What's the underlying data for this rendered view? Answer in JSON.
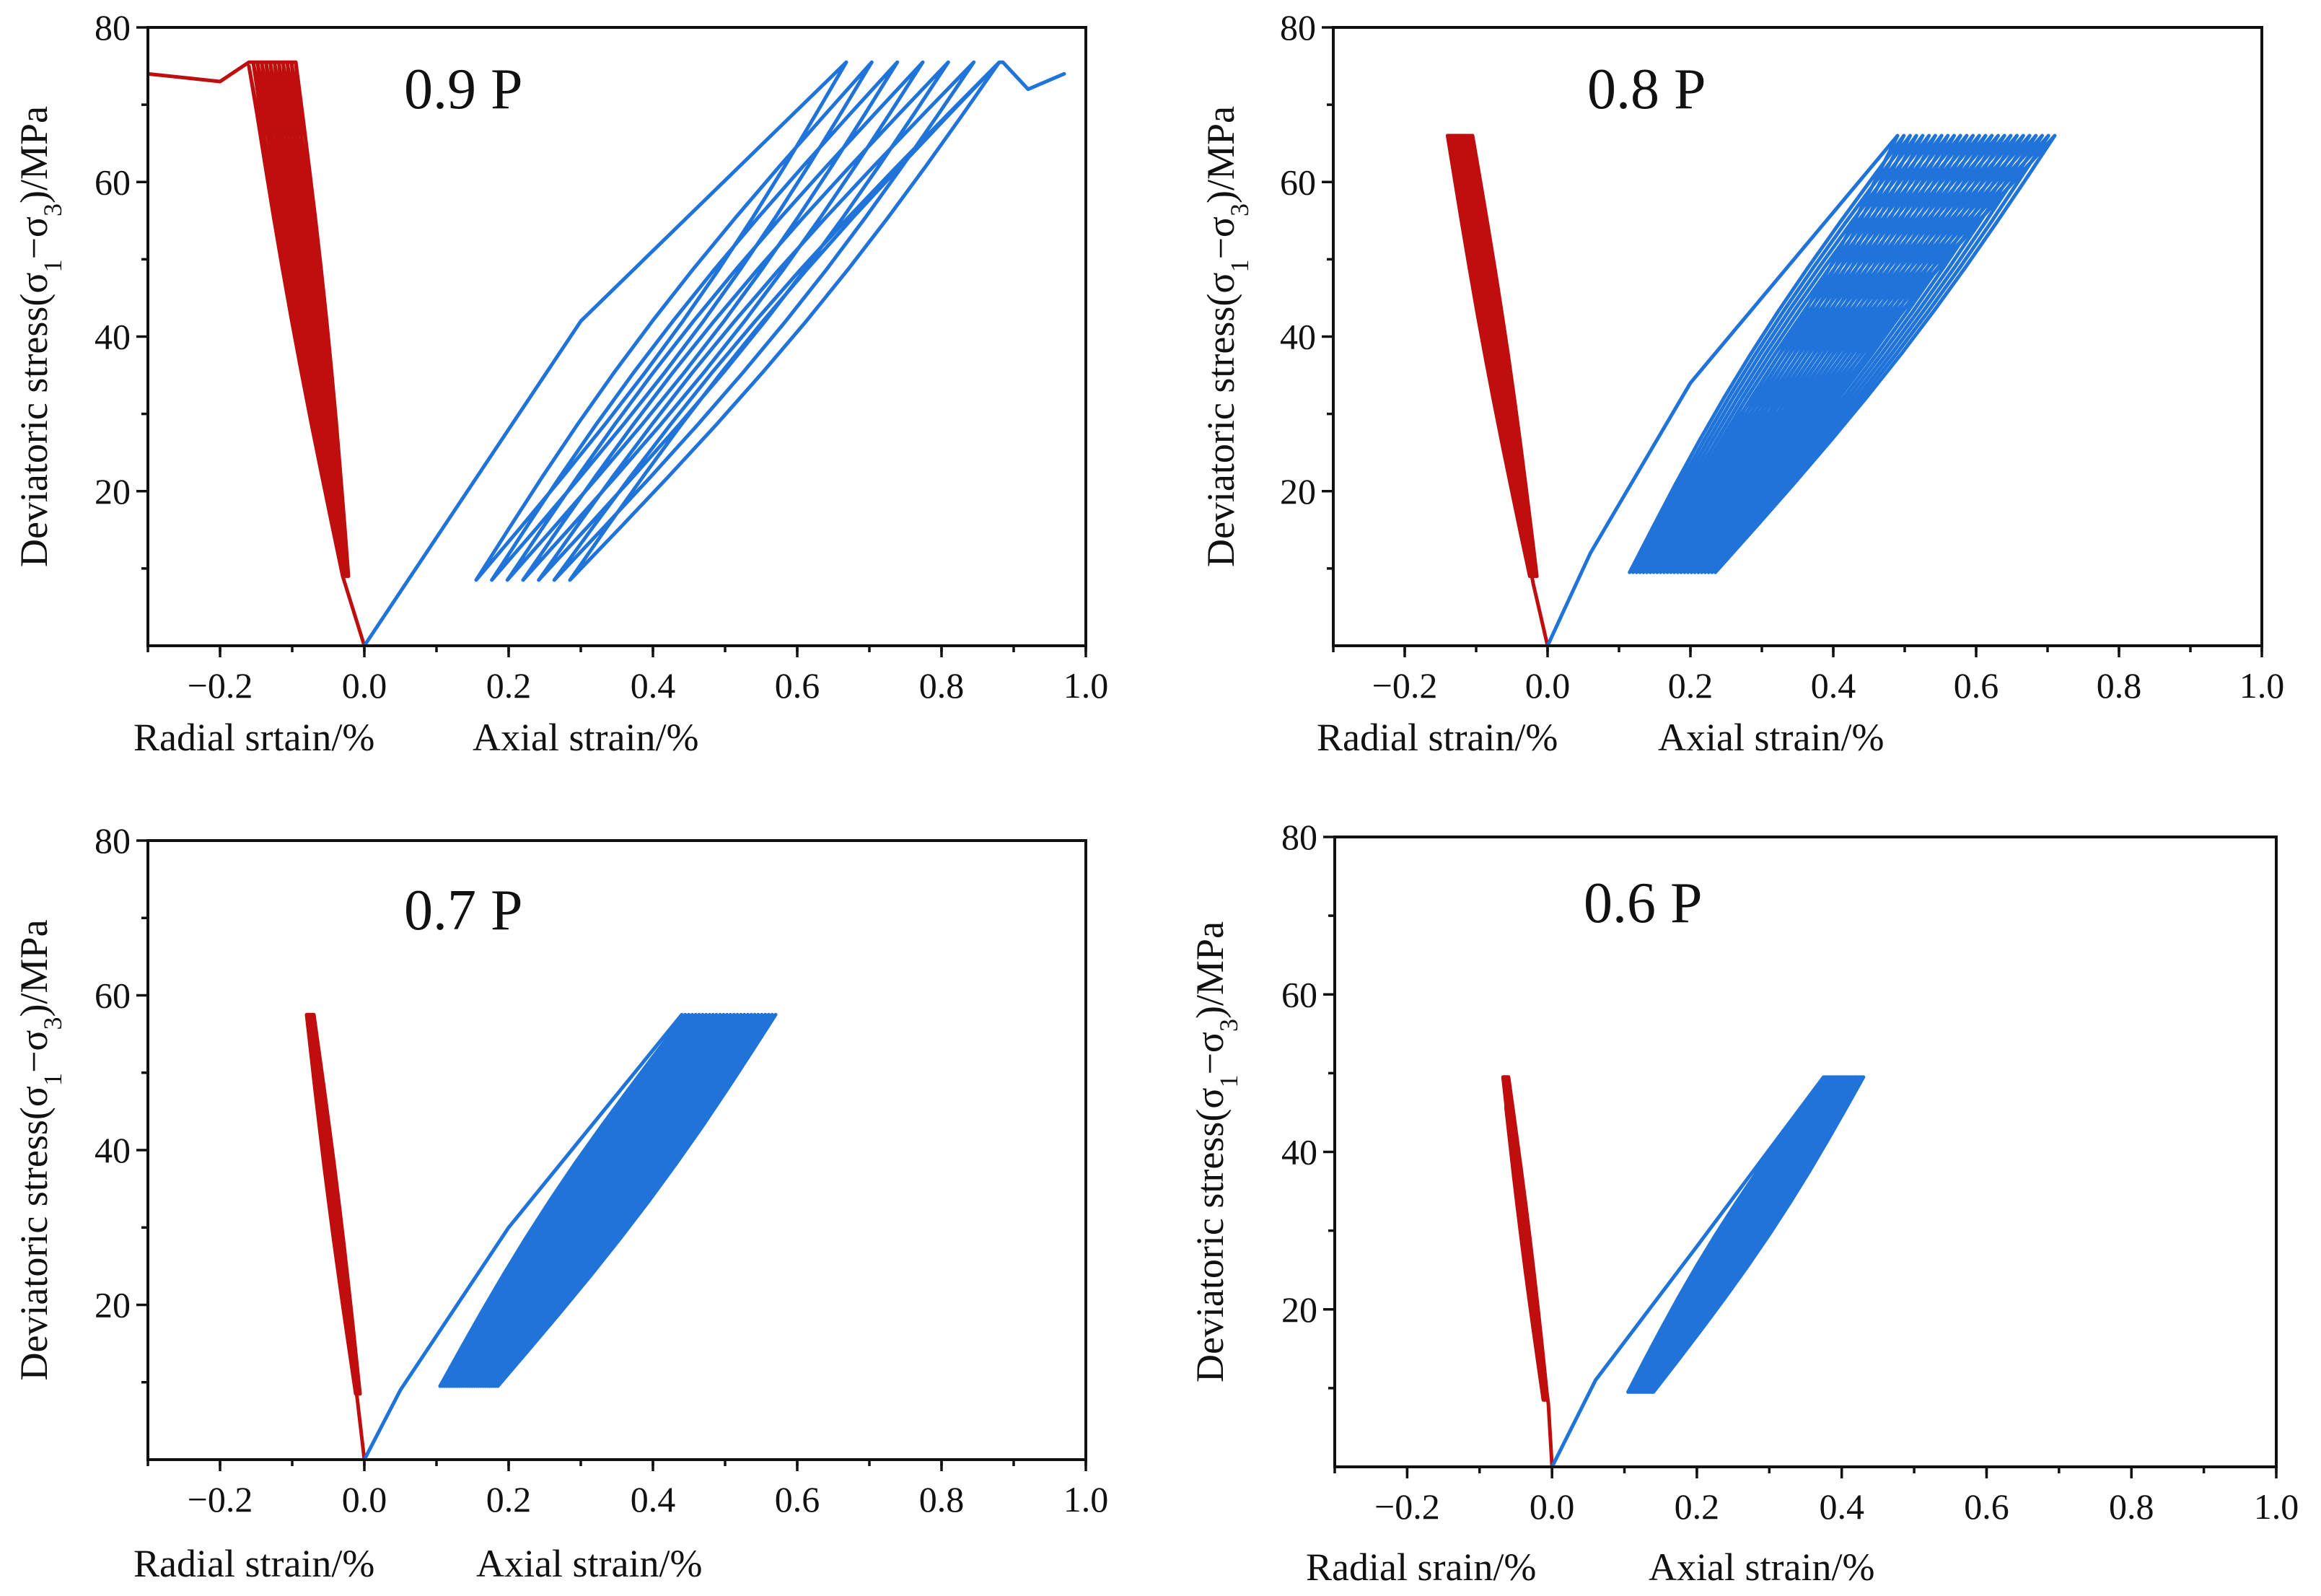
{
  "figure": {
    "colors": {
      "radial": "#c00d0d",
      "axial": "#1f73d9",
      "axis": "#111111"
    }
  },
  "chart_data": [
    {
      "type": "line",
      "title": "0.9 P",
      "xlabel_left": "Radial srtain/%",
      "xlabel_right": "Axial strain/%",
      "ylabel": "Deviatoric stress(σ1−σ3)/MPa",
      "ylabel_parts": {
        "pre": "Deviatoric stress(σ",
        "sub1": "1",
        "mid": "−σ",
        "sub2": "3",
        "post": ")/MPa"
      },
      "xlim": [
        -0.3,
        1.0
      ],
      "ylim": [
        0,
        80
      ],
      "xticks": [
        "−0.2",
        "0.0",
        "0.2",
        "0.4",
        "0.6",
        "0.8",
        "1.0"
      ],
      "xtick_values": [
        -0.2,
        0.0,
        0.2,
        0.4,
        0.6,
        0.8,
        1.0
      ],
      "yticks": [
        "20",
        "40",
        "60",
        "80"
      ],
      "ytick_values": [
        20,
        40,
        60,
        80
      ],
      "series": [
        {
          "name": "Radial strain",
          "color": "#c00d0d",
          "kind": "radial",
          "initial": [
            [
              0.0,
              0
            ],
            [
              -0.03,
              9
            ],
            [
              -0.16,
              75
            ]
          ],
          "cycles": 12,
          "min_stress": 9,
          "max_stress": 75.5,
          "valley_x": [
            -0.03,
            -0.022
          ],
          "peak_x": [
            -0.16,
            -0.095
          ],
          "loop_width": 0.012,
          "final": [
            [
              -0.16,
              75.5
            ],
            [
              -0.2,
              73
            ],
            [
              -0.3,
              74
            ]
          ]
        },
        {
          "name": "Axial strain",
          "color": "#1f73d9",
          "kind": "axial",
          "initial": [
            [
              0.0,
              0
            ],
            [
              0.05,
              7
            ],
            [
              0.3,
              42
            ],
            [
              0.668,
              75.5
            ]
          ],
          "cycles": 7,
          "min_stress": 8.5,
          "max_stress": 75.5,
          "valley_x": [
            0.155,
            0.285
          ],
          "peak_x": [
            0.668,
            0.88
          ],
          "loop_width": 0.06,
          "final": [
            [
              0.885,
              75.5
            ],
            [
              0.92,
              72
            ],
            [
              0.97,
              74
            ]
          ]
        }
      ]
    },
    {
      "type": "line",
      "title": "0.8 P",
      "xlabel_left": "Radial strain/%",
      "xlabel_right": "Axial strain/%",
      "ylabel": "Deviatoric stress(σ1−σ3)/MPa",
      "ylabel_parts": {
        "pre": "Deviatoric stress(σ",
        "sub1": "1",
        "mid": "−σ",
        "sub2": "3",
        "post": ")/MPa"
      },
      "xlim": [
        -0.3,
        1.0
      ],
      "ylim": [
        0,
        80
      ],
      "xticks": [
        "−0.2",
        "0.0",
        "0.2",
        "0.4",
        "0.6",
        "0.8",
        "1.0"
      ],
      "xtick_values": [
        -0.2,
        0.0,
        0.2,
        0.4,
        0.6,
        0.8,
        1.0
      ],
      "yticks": [
        "20",
        "40",
        "60",
        "80"
      ],
      "ytick_values": [
        20,
        40,
        60,
        80
      ],
      "series": [
        {
          "name": "Radial strain",
          "color": "#c00d0d",
          "kind": "radial",
          "initial": [
            [
              0.0,
              0
            ],
            [
              -0.02,
              8
            ],
            [
              -0.14,
              66
            ]
          ],
          "cycles": 22,
          "min_stress": 9,
          "max_stress": 66,
          "valley_x": [
            -0.025,
            -0.015
          ],
          "peak_x": [
            -0.14,
            -0.105
          ],
          "loop_width": 0.01,
          "final": []
        },
        {
          "name": "Axial strain",
          "color": "#1f73d9",
          "kind": "axial",
          "initial": [
            [
              0.0,
              0
            ],
            [
              0.02,
              4
            ],
            [
              0.06,
              12
            ],
            [
              0.2,
              34
            ],
            [
              0.49,
              66
            ]
          ],
          "cycles": 26,
          "min_stress": 9.5,
          "max_stress": 66,
          "valley_x": [
            0.115,
            0.235
          ],
          "peak_x": [
            0.49,
            0.71
          ],
          "loop_width": 0.045,
          "final": []
        }
      ]
    },
    {
      "type": "line",
      "title": "0.7 P",
      "xlabel_left": "Radial strain/%",
      "xlabel_right": "Axial strain/%",
      "ylabel": "Deviatoric stress(σ1−σ3)/MPa",
      "ylabel_parts": {
        "pre": "Deviatoric stress(σ",
        "sub1": "1",
        "mid": "−σ",
        "sub2": "3",
        "post": ")/MPa"
      },
      "xlim": [
        -0.3,
        1.0
      ],
      "ylim": [
        0,
        80
      ],
      "xticks": [
        "−0.2",
        "0.0",
        "0.2",
        "0.4",
        "0.6",
        "0.8",
        "1.0"
      ],
      "xtick_values": [
        -0.2,
        0.0,
        0.2,
        0.4,
        0.6,
        0.8,
        1.0
      ],
      "yticks": [
        "20",
        "40",
        "60",
        "80"
      ],
      "ytick_values": [
        20,
        40,
        60,
        80
      ],
      "series": [
        {
          "name": "Radial strain",
          "color": "#c00d0d",
          "kind": "radial",
          "initial": [
            [
              0.0,
              0
            ],
            [
              -0.01,
              8
            ],
            [
              -0.08,
              57.5
            ]
          ],
          "cycles": 22,
          "min_stress": 8.5,
          "max_stress": 57.5,
          "valley_x": [
            -0.012,
            -0.006
          ],
          "peak_x": [
            -0.08,
            -0.07
          ],
          "loop_width": 0.006,
          "final": []
        },
        {
          "name": "Axial strain",
          "color": "#1f73d9",
          "kind": "axial",
          "initial": [
            [
              0.0,
              0
            ],
            [
              0.05,
              9
            ],
            [
              0.2,
              30
            ],
            [
              0.44,
              57.5
            ]
          ],
          "cycles": 28,
          "min_stress": 9.5,
          "max_stress": 57.5,
          "valley_x": [
            0.105,
            0.185
          ],
          "peak_x": [
            0.44,
            0.57
          ],
          "loop_width": 0.035,
          "final": []
        }
      ]
    },
    {
      "type": "line",
      "title": "0.6 P",
      "xlabel_left": "Radial srain/%",
      "xlabel_right": "Axial strain/%",
      "ylabel": "Deviatoric stress(σ1−σ3)/MPa",
      "ylabel_parts": {
        "pre": "Deviatoric stress(σ",
        "sub1": "1",
        "mid": "−σ",
        "sub2": "3",
        "post": ")/MPa"
      },
      "xlim": [
        -0.3,
        1.0
      ],
      "ylim": [
        0,
        80
      ],
      "xticks": [
        "−0.2",
        "0.0",
        "0.2",
        "0.4",
        "0.6",
        "0.8",
        "1.0"
      ],
      "xtick_values": [
        -0.2,
        0.0,
        0.2,
        0.4,
        0.6,
        0.8,
        1.0
      ],
      "yticks": [
        "20",
        "40",
        "60",
        "80"
      ],
      "ytick_values": [
        20,
        40,
        60,
        80
      ],
      "series": [
        {
          "name": "Radial strain",
          "color": "#c00d0d",
          "kind": "radial",
          "initial": [
            [
              0.0,
              0
            ],
            [
              -0.005,
              8
            ],
            [
              -0.065,
              49.5
            ]
          ],
          "cycles": 20,
          "min_stress": 8.5,
          "max_stress": 49.5,
          "valley_x": [
            -0.012,
            -0.006
          ],
          "peak_x": [
            -0.068,
            -0.06
          ],
          "loop_width": 0.005,
          "final": []
        },
        {
          "name": "Axial strain",
          "color": "#1f73d9",
          "kind": "axial",
          "initial": [
            [
              0.0,
              0
            ],
            [
              0.06,
              11
            ],
            [
              0.2,
              28
            ],
            [
              0.375,
              49.5
            ]
          ],
          "cycles": 26,
          "min_stress": 9.5,
          "max_stress": 49.5,
          "valley_x": [
            0.105,
            0.14
          ],
          "peak_x": [
            0.375,
            0.43
          ],
          "loop_width": 0.03,
          "final": []
        }
      ]
    }
  ]
}
